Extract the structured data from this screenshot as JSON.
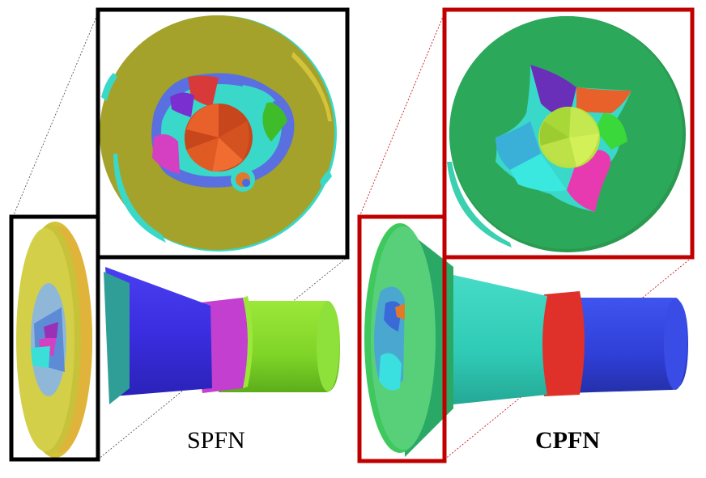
{
  "panels": [
    {
      "id": "spfn",
      "caption": "SPFN",
      "caption_bold": false,
      "frame_color": "#000000"
    },
    {
      "id": "cpfn",
      "caption": "CPFN",
      "caption_bold": true,
      "frame_color": "#c00000"
    }
  ]
}
